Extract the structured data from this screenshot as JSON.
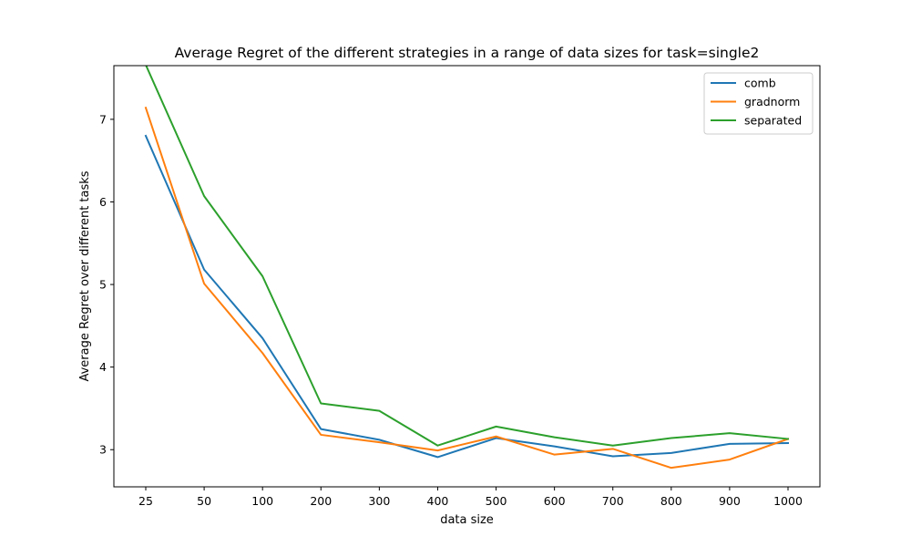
{
  "chart_data": {
    "type": "line",
    "title": "Average Regret of the different strategies in a range of data sizes for task=single2",
    "xlabel": "data size",
    "ylabel": "Average Regret over different tasks",
    "categories": [
      "25",
      "50",
      "100",
      "200",
      "300",
      "400",
      "500",
      "600",
      "700",
      "800",
      "900",
      "1000"
    ],
    "ylim": [
      2.55,
      7.65
    ],
    "yticks": [
      3,
      4,
      5,
      6,
      7
    ],
    "legend_position": "top-right",
    "grid": false,
    "series": [
      {
        "name": "comb",
        "color": "#1f77b4",
        "values": [
          6.8,
          5.18,
          4.35,
          3.25,
          3.12,
          2.91,
          3.14,
          3.04,
          2.92,
          2.96,
          3.07,
          3.08
        ]
      },
      {
        "name": "gradnorm",
        "color": "#ff7f0e",
        "values": [
          7.14,
          5.01,
          4.17,
          3.18,
          3.09,
          2.99,
          3.16,
          2.94,
          3.01,
          2.78,
          2.88,
          3.13
        ]
      },
      {
        "name": "separated",
        "color": "#2ca02c",
        "values": [
          7.66,
          6.07,
          5.1,
          3.56,
          3.47,
          3.05,
          3.28,
          3.15,
          3.05,
          3.14,
          3.2,
          3.13
        ]
      }
    ]
  }
}
